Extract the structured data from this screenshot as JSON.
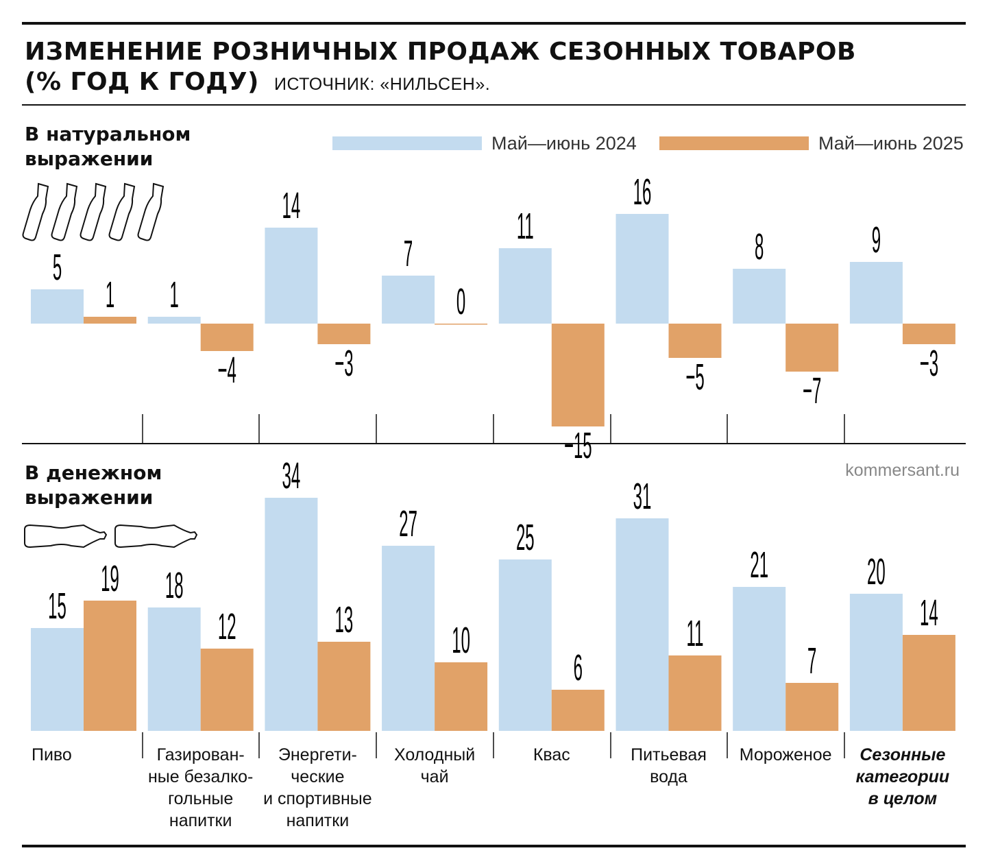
{
  "header": {
    "title_line1": "ИЗМЕНЕНИЕ РОЗНИЧНЫХ ПРОДАЖ СЕЗОННЫХ ТОВАРОВ",
    "title_line2": "(% ГОД К ГОДУ)",
    "source": "ИСТОЧНИК: «НИЛЬСЕН»."
  },
  "legend": {
    "series1": "Май—июнь 2024",
    "series2": "Май—июнь 2025"
  },
  "credit": "kommersant.ru",
  "colors": {
    "series1": "#c3dbef",
    "series2": "#e1a268"
  },
  "chart_data": [
    {
      "type": "bar",
      "title": "В натуральном\nвыражении",
      "categories": [
        "Пиво",
        "Газирован-\nные безалко-\nгольные\nнапитки",
        "Энергети-\nческие\nи спортивные\nнапитки",
        "Холодный\nчай",
        "Квас",
        "Питьевая\nвода",
        "Мороженое",
        "Сезонные\nкатегории\nв целом"
      ],
      "series": [
        {
          "name": "Май—июнь 2024",
          "values": [
            5,
            1,
            14,
            7,
            11,
            16,
            8,
            9
          ]
        },
        {
          "name": "Май—июнь 2025",
          "values": [
            1,
            -4,
            -3,
            0,
            -15,
            -5,
            -7,
            -3
          ]
        }
      ]
    },
    {
      "type": "bar",
      "title": "В денежном\nвыражении",
      "categories": [
        "Пиво",
        "Газирован-\nные безалко-\nгольные\nнапитки",
        "Энергети-\nческие\nи спортивные\nнапитки",
        "Холодный\nчай",
        "Квас",
        "Питьевая\nвода",
        "Мороженое",
        "Сезонные\nкатегории\nв целом"
      ],
      "series": [
        {
          "name": "Май—июнь 2024",
          "values": [
            15,
            18,
            34,
            27,
            25,
            31,
            21,
            20
          ]
        },
        {
          "name": "Май—июнь 2025",
          "values": [
            19,
            12,
            13,
            10,
            6,
            11,
            7,
            14
          ]
        }
      ]
    }
  ]
}
